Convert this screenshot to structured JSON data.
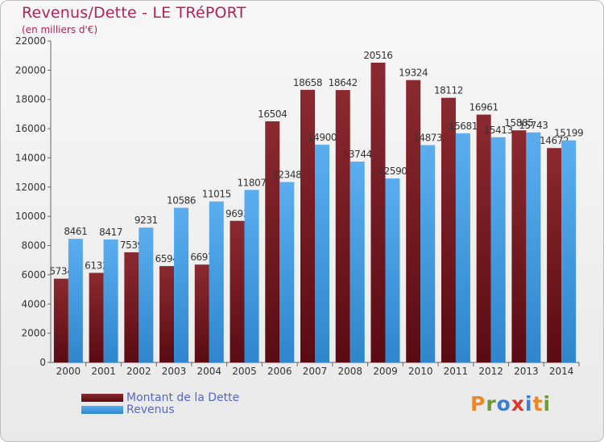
{
  "title": "Revenus/Dette - LE TRéPORT",
  "subtitle": "(en milliers d'€)",
  "logo_text": "Proxiti",
  "colors": {
    "dette": "#7a1a22",
    "revenus": "#3f9ae0",
    "logo": [
      "#e8882a",
      "#6f9a3a",
      "#3f7fc8",
      "#d83a2e",
      "#3f7fc8",
      "#e8882a",
      "#6f9a3a"
    ]
  },
  "chart_data": {
    "type": "bar",
    "title": "Revenus/Dette - LE TRéPORT",
    "subtitle": "(en milliers d'€)",
    "categories": [
      "2000",
      "2001",
      "2002",
      "2003",
      "2004",
      "2005",
      "2006",
      "2007",
      "2008",
      "2009",
      "2010",
      "2011",
      "2012",
      "2013",
      "2014"
    ],
    "series": [
      {
        "name": "Montant de la Dette",
        "values": [
          5734,
          6132,
          7539,
          6594,
          6697,
          9693,
          16504,
          18658,
          18642,
          20516,
          19324,
          18112,
          16961,
          15885,
          14672
        ]
      },
      {
        "name": "Revenus",
        "values": [
          8461,
          8417,
          9231,
          10586,
          11015,
          11807,
          12348,
          14900,
          13744,
          12590,
          14873,
          15681,
          15413,
          15743,
          15199
        ]
      }
    ],
    "ylim": [
      0,
      22000
    ],
    "yticks": [
      0,
      2000,
      4000,
      6000,
      8000,
      10000,
      12000,
      14000,
      16000,
      18000,
      20000,
      22000
    ],
    "grid": false,
    "legend": "bottom-left"
  }
}
